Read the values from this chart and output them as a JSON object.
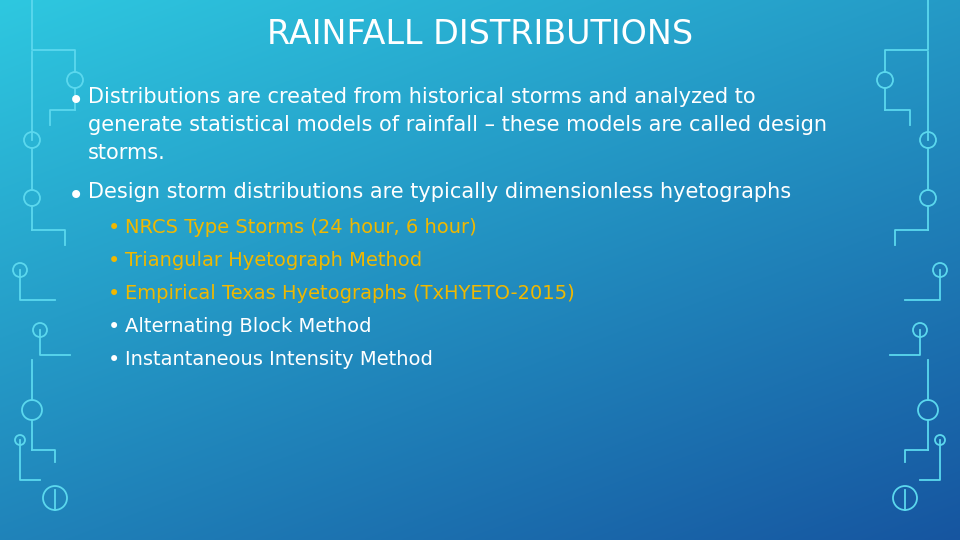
{
  "title": "RAINFALL DISTRIBUTIONS",
  "title_color": "#ffffff",
  "title_fontsize": 24,
  "bg_color_top": "#2ec8e0",
  "bg_color_bottom": "#1655a0",
  "bullet1_line1": "Distributions are created from historical storms and analyzed to",
  "bullet1_line2": "generate statistical models of rainfall – these models are called design",
  "bullet1_line3": "storms.",
  "bullet2": "Design storm distributions are typically dimensionless hyetographs",
  "sub_bullets_yellow": [
    "NRCS Type Storms (24 hour, 6 hour)",
    "Triangular Hyetograph Method",
    "Empirical Texas Hyetographs (TxHYETO-2015)"
  ],
  "sub_bullets_white": [
    "Alternating Block Method",
    "Instantaneous Intensity Method"
  ],
  "text_color_white": "#ffffff",
  "text_color_yellow": "#f0b800",
  "circuit_color": "#5bd8ee",
  "font_family": "DejaVu Sans"
}
